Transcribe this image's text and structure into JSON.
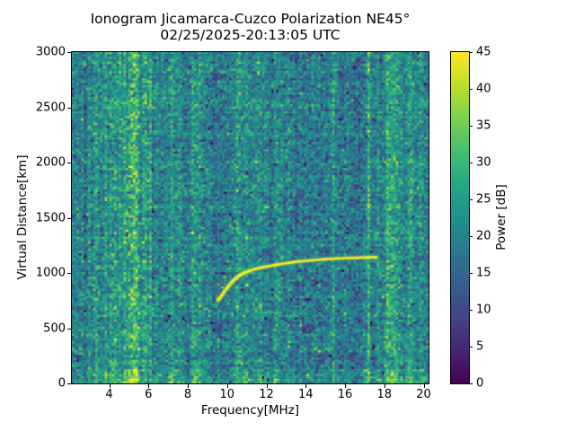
{
  "chart_data": {
    "type": "heatmap",
    "title_line1": "Ionogram Jicamarca-Cuzco Polarization NE45°",
    "title_line2": "02/25/2025-20:13:05 UTC",
    "xlabel": "Frequency[MHz]",
    "ylabel": "Virtual Distance[km]",
    "colorbar_label": "Power [dB]",
    "colormap": "viridis",
    "x_range": [
      2.1,
      20.25
    ],
    "y_range": [
      0,
      3000
    ],
    "color_range": [
      0,
      45
    ],
    "x_ticks": [
      4,
      6,
      8,
      10,
      12,
      14,
      16,
      18,
      20
    ],
    "y_ticks": [
      0,
      500,
      1000,
      1500,
      2000,
      2500,
      3000
    ],
    "colorbar_ticks": [
      0,
      5,
      10,
      15,
      20,
      25,
      30,
      35,
      40,
      45
    ],
    "viridis_anchors": [
      "#440154",
      "#482475",
      "#414487",
      "#355f8d",
      "#2a788e",
      "#21908c",
      "#22a884",
      "#44bf70",
      "#7ad151",
      "#bddf26",
      "#fde725"
    ],
    "noise": {
      "seed": 42,
      "grid_cols": 152,
      "grid_rows": 140,
      "base_db": 19,
      "sigma_db": 5.2,
      "base_regions": [
        [
          2.1,
          2.65,
          19.5
        ],
        [
          2.65,
          6.3,
          19.5
        ],
        [
          6.3,
          8.9,
          19.0
        ],
        [
          8.9,
          10.25,
          17.8
        ],
        [
          10.25,
          13.3,
          19.0
        ],
        [
          13.3,
          15.3,
          18.0
        ],
        [
          15.3,
          15.75,
          18.5
        ],
        [
          15.75,
          17.15,
          17.5
        ],
        [
          17.15,
          18.0,
          18.0
        ],
        [
          18.0,
          19.6,
          19.5
        ],
        [
          19.6,
          20.25,
          19.0
        ]
      ]
    },
    "rfi_stripes": [
      {
        "f": 2.95,
        "w": 0.06,
        "amp": 5
      },
      {
        "f": 3.3,
        "w": 0.06,
        "amp": 6
      },
      {
        "f": 3.75,
        "w": 0.05,
        "amp": 4
      },
      {
        "f": 4.25,
        "w": 0.08,
        "amp": 9
      },
      {
        "f": 4.55,
        "w": 0.06,
        "amp": 7
      },
      {
        "f": 4.8,
        "w": 0.05,
        "amp": 6
      },
      {
        "f": 5.05,
        "w": 0.09,
        "amp": 13
      },
      {
        "f": 5.3,
        "w": 0.1,
        "amp": 15
      },
      {
        "f": 5.55,
        "w": 0.07,
        "amp": 9
      },
      {
        "f": 5.8,
        "w": 0.05,
        "amp": 6
      },
      {
        "f": 6.1,
        "w": 0.05,
        "amp": 4
      },
      {
        "f": 7.2,
        "w": 0.2,
        "amp": 5
      },
      {
        "f": 7.55,
        "w": 0.08,
        "amp": 4
      },
      {
        "f": 8.35,
        "w": 0.14,
        "amp": 8
      },
      {
        "f": 8.65,
        "w": 0.08,
        "amp": 5
      },
      {
        "f": 9.0,
        "w": 0.06,
        "amp": 4
      },
      {
        "f": 10.55,
        "w": 0.05,
        "amp": 7
      },
      {
        "f": 10.95,
        "w": 0.04,
        "amp": 4
      },
      {
        "f": 11.65,
        "w": 0.2,
        "amp": 3
      },
      {
        "f": 12.55,
        "w": 0.05,
        "amp": 7
      },
      {
        "f": 13.1,
        "w": 0.04,
        "amp": 4
      },
      {
        "f": 15.4,
        "w": 0.05,
        "amp": 8
      },
      {
        "f": 17.2,
        "w": 0.06,
        "amp": 14
      },
      {
        "f": 17.65,
        "w": 0.05,
        "amp": 6
      },
      {
        "f": 18.25,
        "w": 0.15,
        "amp": 10
      },
      {
        "f": 18.55,
        "w": 0.1,
        "amp": 6
      },
      {
        "f": 19.35,
        "w": 0.18,
        "amp": 5
      },
      {
        "f": 19.85,
        "w": 0.08,
        "amp": 4
      }
    ],
    "echo_trace": {
      "power_db": 45,
      "points": [
        [
          9.55,
          755
        ],
        [
          9.7,
          790
        ],
        [
          9.85,
          830
        ],
        [
          10.0,
          865
        ],
        [
          10.2,
          910
        ],
        [
          10.4,
          945
        ],
        [
          10.6,
          975
        ],
        [
          10.85,
          1000
        ],
        [
          11.15,
          1020
        ],
        [
          11.5,
          1040
        ],
        [
          12.0,
          1058
        ],
        [
          12.5,
          1074
        ],
        [
          13.0,
          1088
        ],
        [
          13.5,
          1100
        ],
        [
          14.0,
          1110
        ],
        [
          14.5,
          1118
        ],
        [
          15.0,
          1125
        ],
        [
          15.5,
          1130
        ],
        [
          16.0,
          1134
        ],
        [
          16.5,
          1137
        ],
        [
          17.0,
          1139
        ],
        [
          17.3,
          1141
        ],
        [
          17.6,
          1143
        ]
      ]
    },
    "secondary_echo": {
      "power_db": 30,
      "points": [
        [
          11.6,
          640
        ],
        [
          12.75,
          640
        ]
      ]
    }
  }
}
